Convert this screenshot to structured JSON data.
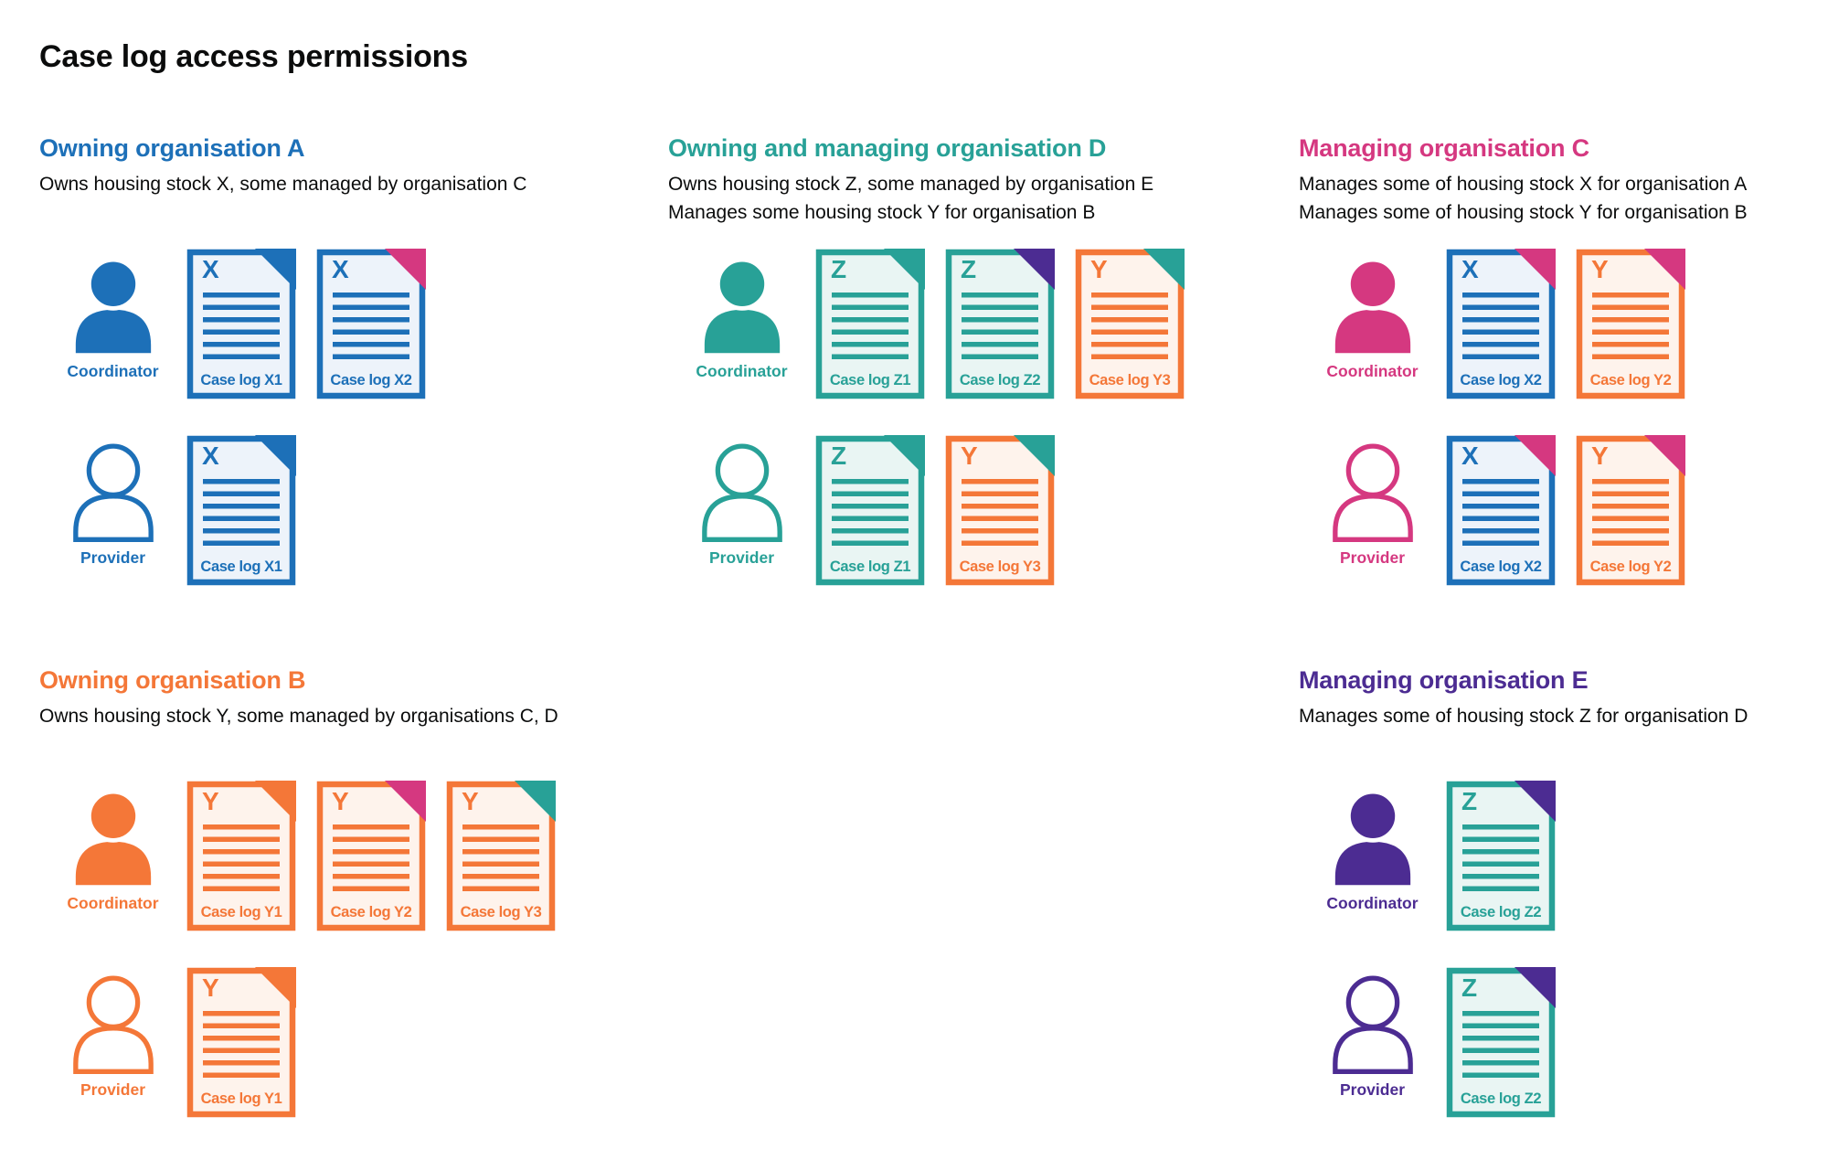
{
  "title": "Case log access permissions",
  "palette": {
    "blue": "#1d70b8",
    "teal": "#28a197",
    "pink": "#d53880",
    "orange": "#f47738",
    "purple": "#4c2c92",
    "text": "#0b0c0c",
    "background": "#ffffff"
  },
  "doc_tints": {
    "blue": "#edf3fa",
    "teal": "#e9f5f3",
    "orange": "#fef3ec"
  },
  "icons": {
    "coordinator": "person-filled-icon",
    "provider": "person-outline-icon",
    "case_log": "document-folded-corner-icon"
  },
  "sections": [
    {
      "area": "a",
      "heading": "Owning organisation A",
      "color": "blue",
      "description_lines": [
        "Owns housing stock X, some managed by organisation C"
      ],
      "rows": [
        {
          "persona_label": "Coordinator",
          "variant": "filled",
          "docs": [
            {
              "letter": "X",
              "label": "Case log X1",
              "color": "blue",
              "fold": "blue"
            },
            {
              "letter": "X",
              "label": "Case log X2",
              "color": "blue",
              "fold": "pink"
            }
          ]
        },
        {
          "persona_label": "Provider",
          "variant": "outline",
          "docs": [
            {
              "letter": "X",
              "label": "Case log X1",
              "color": "blue",
              "fold": "blue"
            }
          ]
        }
      ]
    },
    {
      "area": "d",
      "heading": "Owning and managing organisation D",
      "color": "teal",
      "description_lines": [
        "Owns housing stock Z, some managed by organisation E",
        "Manages some housing stock Y for organisation B"
      ],
      "rows": [
        {
          "persona_label": "Coordinator",
          "variant": "filled",
          "docs": [
            {
              "letter": "Z",
              "label": "Case log Z1",
              "color": "teal",
              "fold": "teal"
            },
            {
              "letter": "Z",
              "label": "Case log Z2",
              "color": "teal",
              "fold": "purple"
            },
            {
              "letter": "Y",
              "label": "Case log Y3",
              "color": "orange",
              "fold": "teal"
            }
          ]
        },
        {
          "persona_label": "Provider",
          "variant": "outline",
          "docs": [
            {
              "letter": "Z",
              "label": "Case log Z1",
              "color": "teal",
              "fold": "teal"
            },
            {
              "letter": "Y",
              "label": "Case log Y3",
              "color": "orange",
              "fold": "teal"
            }
          ]
        }
      ]
    },
    {
      "area": "c",
      "heading": "Managing organisation C",
      "color": "pink",
      "description_lines": [
        "Manages some of housing stock X for organisation A",
        "Manages some of housing stock Y for organisation B"
      ],
      "rows": [
        {
          "persona_label": "Coordinator",
          "variant": "filled",
          "docs": [
            {
              "letter": "X",
              "label": "Case log X2",
              "color": "blue",
              "fold": "pink"
            },
            {
              "letter": "Y",
              "label": "Case log Y2",
              "color": "orange",
              "fold": "pink"
            }
          ]
        },
        {
          "persona_label": "Provider",
          "variant": "outline",
          "docs": [
            {
              "letter": "X",
              "label": "Case log X2",
              "color": "blue",
              "fold": "pink"
            },
            {
              "letter": "Y",
              "label": "Case log Y2",
              "color": "orange",
              "fold": "pink"
            }
          ]
        }
      ]
    },
    {
      "area": "b",
      "heading": "Owning organisation B",
      "color": "orange",
      "description_lines": [
        "Owns housing stock Y, some managed by organisations C, D"
      ],
      "rows": [
        {
          "persona_label": "Coordinator",
          "variant": "filled",
          "docs": [
            {
              "letter": "Y",
              "label": "Case log Y1",
              "color": "orange",
              "fold": "orange"
            },
            {
              "letter": "Y",
              "label": "Case log Y2",
              "color": "orange",
              "fold": "pink"
            },
            {
              "letter": "Y",
              "label": "Case log Y3",
              "color": "orange",
              "fold": "teal"
            }
          ]
        },
        {
          "persona_label": "Provider",
          "variant": "outline",
          "docs": [
            {
              "letter": "Y",
              "label": "Case log Y1",
              "color": "orange",
              "fold": "orange"
            }
          ]
        }
      ]
    },
    {
      "area": "e",
      "heading": "Managing organisation E",
      "color": "purple",
      "description_lines": [
        "Manages some of housing stock Z for organisation D"
      ],
      "rows": [
        {
          "persona_label": "Coordinator",
          "variant": "filled",
          "docs": [
            {
              "letter": "Z",
              "label": "Case log Z2",
              "color": "teal",
              "fold": "purple"
            }
          ]
        },
        {
          "persona_label": "Provider",
          "variant": "outline",
          "docs": [
            {
              "letter": "Z",
              "label": "Case log Z2",
              "color": "teal",
              "fold": "purple"
            }
          ]
        }
      ]
    }
  ]
}
